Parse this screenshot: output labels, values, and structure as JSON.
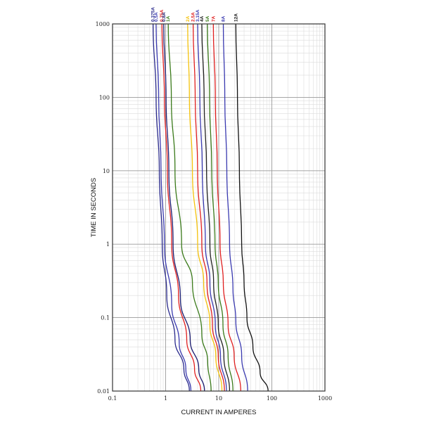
{
  "chart_data": {
    "type": "line",
    "title": "",
    "xlabel": "CURRENT IN AMPERES",
    "ylabel": "TIME IN SECONDS",
    "x_scale": "log",
    "y_scale": "log",
    "xlim": [
      0.1,
      1000
    ],
    "ylim": [
      0.01,
      1000
    ],
    "grid": true,
    "x_ticks": [
      {
        "value": 0.1,
        "label": "0.1"
      },
      {
        "value": 1,
        "label": "1"
      },
      {
        "value": 10,
        "label": "10"
      },
      {
        "value": 100,
        "label": "100"
      },
      {
        "value": 1000,
        "label": "1000"
      }
    ],
    "y_ticks": [
      {
        "value": 0.01,
        "label": "0.01"
      },
      {
        "value": 0.1,
        "label": "0.1"
      },
      {
        "value": 1,
        "label": "1"
      },
      {
        "value": 10,
        "label": "10"
      },
      {
        "value": 100,
        "label": "100"
      },
      {
        "value": 1000,
        "label": "1000"
      }
    ],
    "series": [
      {
        "name": "0.375A",
        "color": "#2a2a8c",
        "points": [
          [
            0.58,
            1000
          ],
          [
            0.66,
            100
          ],
          [
            0.76,
            10
          ],
          [
            0.86,
            1
          ],
          [
            1.05,
            0.2
          ],
          [
            1.5,
            0.05
          ],
          [
            2.2,
            0.02
          ],
          [
            2.8,
            0.01
          ]
        ]
      },
      {
        "name": "0.5A",
        "color": "#3a3ab0",
        "points": [
          [
            0.66,
            1000
          ],
          [
            0.74,
            100
          ],
          [
            0.82,
            10
          ],
          [
            0.95,
            1
          ],
          [
            1.3,
            0.15
          ],
          [
            1.8,
            0.045
          ],
          [
            2.4,
            0.02
          ],
          [
            3.0,
            0.01
          ]
        ]
      },
      {
        "name": "0.75A",
        "color": "#e02020",
        "points": [
          [
            0.85,
            1000
          ],
          [
            0.95,
            100
          ],
          [
            1.08,
            10
          ],
          [
            1.3,
            1
          ],
          [
            1.75,
            0.2
          ],
          [
            2.5,
            0.05
          ],
          [
            3.5,
            0.02
          ],
          [
            4.6,
            0.01
          ]
        ]
      },
      {
        "name": "0.8A",
        "color": "#1c1c70",
        "points": [
          [
            0.92,
            1000
          ],
          [
            1.02,
            100
          ],
          [
            1.15,
            10
          ],
          [
            1.38,
            1
          ],
          [
            1.9,
            0.18
          ],
          [
            2.9,
            0.05
          ],
          [
            4.2,
            0.02
          ],
          [
            5.4,
            0.01
          ]
        ]
      },
      {
        "name": "1A",
        "color": "#3a7a1a",
        "points": [
          [
            1.12,
            1000
          ],
          [
            1.28,
            100
          ],
          [
            1.5,
            10
          ],
          [
            2.0,
            1
          ],
          [
            3.2,
            0.3
          ],
          [
            4.8,
            0.06
          ],
          [
            6.2,
            0.025
          ],
          [
            7.2,
            0.01
          ]
        ]
      },
      {
        "name": "2A",
        "color": "#f4c20d",
        "points": [
          [
            2.6,
            1000
          ],
          [
            2.8,
            100
          ],
          [
            3.2,
            10
          ],
          [
            4.0,
            1
          ],
          [
            5.2,
            0.3
          ],
          [
            6.8,
            0.08
          ],
          [
            8.8,
            0.03
          ],
          [
            11.5,
            0.01
          ]
        ]
      },
      {
        "name": "2.5A",
        "color": "#e02020",
        "points": [
          [
            3.3,
            1000
          ],
          [
            3.6,
            100
          ],
          [
            4.0,
            10
          ],
          [
            4.8,
            1
          ],
          [
            6.0,
            0.3
          ],
          [
            7.6,
            0.08
          ],
          [
            9.8,
            0.03
          ],
          [
            12.8,
            0.01
          ]
        ]
      },
      {
        "name": "3.15A",
        "color": "#3a3ab0",
        "points": [
          [
            4.0,
            1000
          ],
          [
            4.4,
            100
          ],
          [
            4.9,
            10
          ],
          [
            5.6,
            1
          ],
          [
            6.8,
            0.3
          ],
          [
            8.6,
            0.08
          ],
          [
            10.8,
            0.03
          ],
          [
            14.0,
            0.01
          ]
        ]
      },
      {
        "name": "4A",
        "color": "#222222",
        "points": [
          [
            4.8,
            1000
          ],
          [
            5.3,
            100
          ],
          [
            5.9,
            10
          ],
          [
            6.8,
            1
          ],
          [
            8.0,
            0.3
          ],
          [
            9.8,
            0.08
          ],
          [
            12.5,
            0.03
          ],
          [
            16.0,
            0.01
          ]
        ]
      },
      {
        "name": "5A",
        "color": "#3a7a1a",
        "points": [
          [
            6.1,
            1000
          ],
          [
            6.7,
            100
          ],
          [
            7.4,
            10
          ],
          [
            8.5,
            1
          ],
          [
            9.8,
            0.3
          ],
          [
            12.0,
            0.08
          ],
          [
            15.0,
            0.03
          ],
          [
            18.5,
            0.01
          ]
        ]
      },
      {
        "name": "7A",
        "color": "#e02020",
        "points": [
          [
            7.9,
            1000
          ],
          [
            8.6,
            100
          ],
          [
            9.4,
            10
          ],
          [
            10.6,
            1
          ],
          [
            12.2,
            0.3
          ],
          [
            15.0,
            0.08
          ],
          [
            19.5,
            0.03
          ],
          [
            26.0,
            0.01
          ]
        ]
      },
      {
        "name": "8A",
        "color": "#3a3ab0",
        "points": [
          [
            12.2,
            1000
          ],
          [
            13.0,
            100
          ],
          [
            14.2,
            10
          ],
          [
            16.0,
            1
          ],
          [
            18.5,
            0.25
          ],
          [
            21.0,
            0.09
          ],
          [
            27.0,
            0.03
          ],
          [
            35.0,
            0.01
          ]
        ]
      },
      {
        "name": "12A",
        "color": "#111111",
        "points": [
          [
            21.0,
            1000
          ],
          [
            22.5,
            100
          ],
          [
            24.5,
            10
          ],
          [
            27.0,
            1
          ],
          [
            30.0,
            0.3
          ],
          [
            34.0,
            0.1
          ],
          [
            44.0,
            0.04
          ],
          [
            60.0,
            0.018
          ],
          [
            85.0,
            0.01
          ]
        ]
      }
    ]
  }
}
